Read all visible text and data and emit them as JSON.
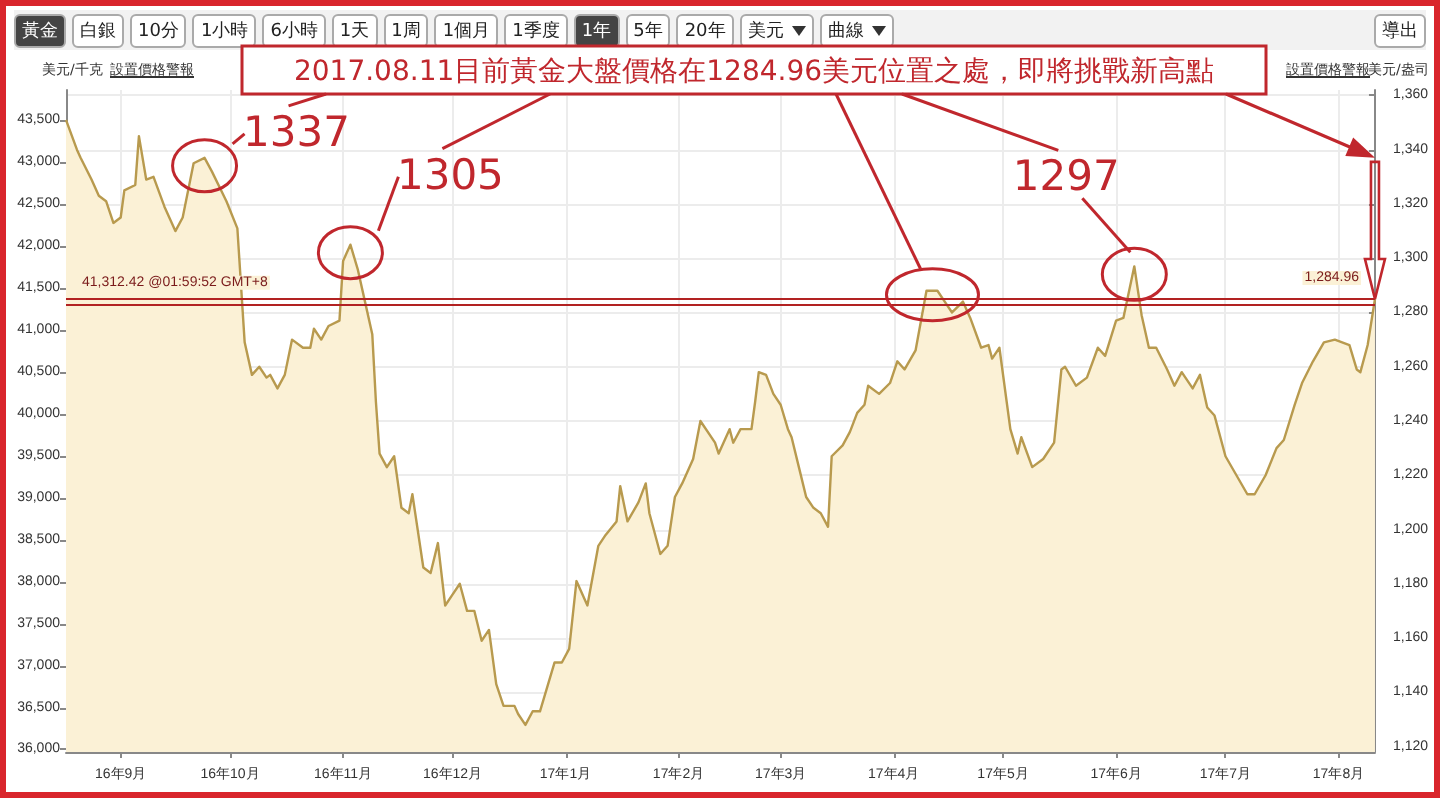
{
  "chart_data": {
    "type": "area",
    "ylabel": "美元/盎司",
    "y2label": "美元/千克",
    "annotations": [
      "2017.08.11目前黃金大盤價格在1284.96美元位置之處，即將挑戰新高點",
      {
        "text": "1337",
        "x": "2016-09-24",
        "y": 1337
      },
      {
        "text": "1305",
        "x": "2016-11-03",
        "y": 1305
      },
      {
        "text": "1297",
        "x": "2017-06-06",
        "y": 1297
      },
      "黃金",
      "白銀",
      "10分",
      "1小時",
      "6小時",
      "1天",
      "1周",
      "1個月",
      "1季度",
      "1年",
      "5年",
      "20年",
      "美元",
      "曲線",
      "導出",
      "設置價格警報",
      "設置價格警報"
    ],
    "x": [
      "2016-08-17",
      "2016-08-20",
      "2016-08-21",
      "2016-08-24",
      "2016-08-26",
      "2016-08-28",
      "2016-08-30",
      "2016-09-01",
      "2016-09-02",
      "2016-09-05",
      "2016-09-06",
      "2016-09-08",
      "2016-09-10",
      "2016-09-13",
      "2016-09-16",
      "2016-09-18",
      "2016-09-21",
      "2016-09-24",
      "2016-09-26",
      "2016-09-30",
      "2016-10-03",
      "2016-10-05",
      "2016-10-07",
      "2016-10-09",
      "2016-10-11",
      "2016-10-12",
      "2016-10-14",
      "2016-10-16",
      "2016-10-18",
      "2016-10-21",
      "2016-10-23",
      "2016-10-24",
      "2016-10-26",
      "2016-10-28",
      "2016-10-31",
      "2016-11-01",
      "2016-11-03",
      "2016-11-05",
      "2016-11-07",
      "2016-11-09",
      "2016-11-10",
      "2016-11-11",
      "2016-11-13",
      "2016-11-15",
      "2016-11-17",
      "2016-11-19",
      "2016-11-20",
      "2016-11-23",
      "2016-11-25",
      "2016-11-27",
      "2016-11-29",
      "2016-12-01",
      "2016-12-03",
      "2016-12-05",
      "2016-12-07",
      "2016-12-09",
      "2016-12-11",
      "2016-12-13",
      "2016-12-15",
      "2016-12-18",
      "2016-12-19",
      "2016-12-21",
      "2016-12-23",
      "2016-12-25",
      "2016-12-29",
      "2016-12-31",
      "2017-01-02",
      "2017-01-04",
      "2017-01-07",
      "2017-01-10",
      "2017-01-12",
      "2017-01-15",
      "2017-01-16",
      "2017-01-18",
      "2017-01-21",
      "2017-01-23",
      "2017-01-24",
      "2017-01-27",
      "2017-01-29",
      "2017-01-31",
      "2017-02-02",
      "2017-02-05",
      "2017-02-07",
      "2017-02-11",
      "2017-02-12",
      "2017-02-15",
      "2017-02-16",
      "2017-02-18",
      "2017-02-21",
      "2017-02-22",
      "2017-02-23",
      "2017-02-25",
      "2017-02-27",
      "2017-03-01",
      "2017-03-03",
      "2017-03-04",
      "2017-03-06",
      "2017-03-08",
      "2017-03-10",
      "2017-03-12",
      "2017-03-14",
      "2017-03-15",
      "2017-03-18",
      "2017-03-20",
      "2017-03-22",
      "2017-03-24",
      "2017-03-25",
      "2017-03-28",
      "2017-03-31",
      "2017-04-02",
      "2017-04-04",
      "2017-04-07",
      "2017-04-10",
      "2017-04-13",
      "2017-04-15",
      "2017-04-17",
      "2017-04-20",
      "2017-04-22",
      "2017-04-25",
      "2017-04-27",
      "2017-04-28",
      "2017-04-30",
      "2017-05-02",
      "2017-05-03",
      "2017-05-05",
      "2017-05-06",
      "2017-05-09",
      "2017-05-12",
      "2017-05-15",
      "2017-05-17",
      "2017-05-18",
      "2017-05-21",
      "2017-05-24",
      "2017-05-27",
      "2017-05-29",
      "2017-06-01",
      "2017-06-03",
      "2017-06-06",
      "2017-06-08",
      "2017-06-10",
      "2017-06-12",
      "2017-06-15",
      "2017-06-17",
      "2017-06-19",
      "2017-06-22",
      "2017-06-24",
      "2017-06-26",
      "2017-06-28",
      "2017-07-01",
      "2017-07-04",
      "2017-07-07",
      "2017-07-09",
      "2017-07-12",
      "2017-07-15",
      "2017-07-17",
      "2017-07-20",
      "2017-07-22",
      "2017-07-25",
      "2017-07-28",
      "2017-07-31",
      "2017-08-02",
      "2017-08-04",
      "2017-08-06",
      "2017-08-07",
      "2017-08-09",
      "2017-08-11"
    ],
    "series": [
      {
        "color": "#b89a4e",
        "values": [
          1351,
          1340,
          1337,
          1329,
          1323,
          1321,
          1313,
          1315,
          1325,
          1327,
          1345,
          1329,
          1330,
          1319,
          1310,
          1315,
          1335,
          1337,
          1332,
          1321,
          1311,
          1269,
          1257,
          1260,
          1256,
          1257,
          1252,
          1257,
          1270,
          1267,
          1267,
          1274,
          1270,
          1275,
          1277,
          1299,
          1305,
          1296,
          1284,
          1272,
          1247,
          1228,
          1223,
          1227,
          1208,
          1206,
          1213,
          1186,
          1184,
          1195,
          1172,
          1176,
          1180,
          1170,
          1170,
          1159,
          1163,
          1143,
          1135,
          1135,
          1132,
          1128,
          1133,
          1133,
          1151,
          1151,
          1156,
          1181,
          1172,
          1194,
          1198,
          1203,
          1216,
          1203,
          1210,
          1217,
          1206,
          1191,
          1194,
          1212,
          1217,
          1226,
          1240,
          1232,
          1228,
          1237,
          1232,
          1237,
          1237,
          1247,
          1258,
          1257,
          1250,
          1246,
          1237,
          1234,
          1223,
          1212,
          1208,
          1206,
          1201,
          1227,
          1231,
          1236,
          1243,
          1246,
          1253,
          1250,
          1254,
          1262,
          1259,
          1266,
          1288,
          1288,
          1284,
          1280,
          1284,
          1278,
          1267,
          1268,
          1263,
          1267,
          1247,
          1237,
          1228,
          1234,
          1223,
          1226,
          1232,
          1259,
          1260,
          1253,
          1256,
          1267,
          1264,
          1277,
          1278,
          1297,
          1279,
          1267,
          1267,
          1259,
          1253,
          1258,
          1252,
          1257,
          1245,
          1242,
          1227,
          1220,
          1213,
          1213,
          1220,
          1230,
          1233,
          1246,
          1254,
          1262,
          1269,
          1270,
          1269,
          1268,
          1259,
          1258,
          1268,
          1284.96
        ]
      }
    ],
    "xlim": [
      "2016-08-17",
      "2017-08-11"
    ],
    "xticks": [
      {
        "value": "2016-09-01",
        "label": "16年9月"
      },
      {
        "value": "2016-10-01",
        "label": "16年10月"
      },
      {
        "value": "2016-11-01",
        "label": "16年11月"
      },
      {
        "value": "2016-12-01",
        "label": "16年12月"
      },
      {
        "value": "2017-01-01",
        "label": "17年1月"
      },
      {
        "value": "2017-02-01",
        "label": "17年2月"
      },
      {
        "value": "2017-03-01",
        "label": "17年3月"
      },
      {
        "value": "2017-04-01",
        "label": "17年4月"
      },
      {
        "value": "2017-05-01",
        "label": "17年5月"
      },
      {
        "value": "2017-06-01",
        "label": "17年6月"
      },
      {
        "value": "2017-07-01",
        "label": "17年7月"
      },
      {
        "value": "2017-08-01",
        "label": "17年8月"
      }
    ],
    "ylim": [
      1118,
      1362
    ],
    "yticks": [
      {
        "value": 1120,
        "label": "1,120"
      },
      {
        "value": 1140,
        "label": "1,140"
      },
      {
        "value": 1160,
        "label": "1,160"
      },
      {
        "value": 1180,
        "label": "1,180"
      },
      {
        "value": 1200,
        "label": "1,200"
      },
      {
        "value": 1220,
        "label": "1,220"
      },
      {
        "value": 1240,
        "label": "1,240"
      },
      {
        "value": 1260,
        "label": "1,260"
      },
      {
        "value": 1280,
        "label": "1,280"
      },
      {
        "value": 1300,
        "label": "1,300"
      },
      {
        "value": 1320,
        "label": "1,320"
      },
      {
        "value": 1340,
        "label": "1,340"
      },
      {
        "value": 1360,
        "label": "1,360"
      }
    ],
    "y2lim": [
      35970,
      43860
    ],
    "y2ticks": [
      {
        "value": 36000,
        "label": "36,000"
      },
      {
        "value": 36500,
        "label": "36,500"
      },
      {
        "value": 37000,
        "label": "37,000"
      },
      {
        "value": 37500,
        "label": "37,500"
      },
      {
        "value": 38000,
        "label": "38,000"
      },
      {
        "value": 38500,
        "label": "38,500"
      },
      {
        "value": 39000,
        "label": "39,000"
      },
      {
        "value": 39500,
        "label": "39,500"
      },
      {
        "value": 40000,
        "label": "40,000"
      },
      {
        "value": 40500,
        "label": "40,500"
      },
      {
        "value": 41000,
        "label": "41,000"
      },
      {
        "value": 41500,
        "label": "41,500"
      },
      {
        "value": 42000,
        "label": "42,000"
      },
      {
        "value": 42500,
        "label": "42,500"
      },
      {
        "value": 43000,
        "label": "43,000"
      },
      {
        "value": 43500,
        "label": "43,500"
      }
    ],
    "ref_lines": [
      {
        "axis": "y2",
        "value": 41312.42,
        "label": "41,312.42 @01:59:52 GMT+8",
        "color": "#b22222"
      },
      {
        "axis": "y",
        "value": 1284.96,
        "label": "1,284.96",
        "color": "#b22222"
      }
    ],
    "grid": true,
    "marker": "none",
    "line_style": "solid"
  }
}
